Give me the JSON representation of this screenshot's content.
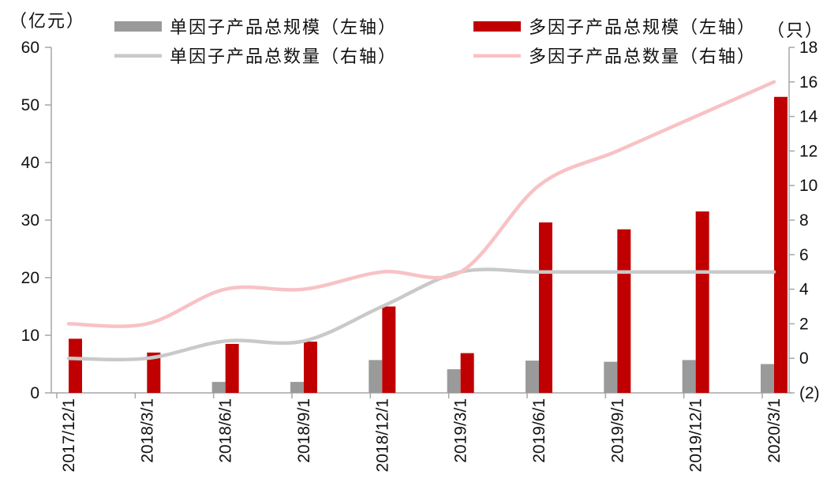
{
  "chart_data": {
    "type": "bar-line-combo",
    "categories": [
      "2017/12/1",
      "2018/3/1",
      "2018/6/1",
      "2018/9/1",
      "2018/12/1",
      "2019/3/1",
      "2019/6/1",
      "2019/9/1",
      "2019/12/1",
      "2020/3/1"
    ],
    "series": [
      {
        "key": "single_scale",
        "name": "单因子产品总规模（左轴）",
        "type": "bar",
        "axis": "left",
        "color": "#9a9a9a",
        "values": [
          0,
          0,
          1.9,
          1.9,
          5.7,
          4.1,
          5.6,
          5.4,
          5.7,
          5.0
        ]
      },
      {
        "key": "multi_scale",
        "name": "多因子产品总规模（左轴）",
        "type": "bar",
        "axis": "left",
        "color": "#c00000",
        "values": [
          9.4,
          7.0,
          8.5,
          8.9,
          15.0,
          6.9,
          29.6,
          28.4,
          31.5,
          51.4
        ]
      },
      {
        "key": "single_count",
        "name": "单因子产品总数量（右轴）",
        "type": "line",
        "axis": "right",
        "color": "#c9c9c9",
        "values": [
          0,
          0,
          1,
          1,
          3,
          5,
          5,
          5,
          5,
          5
        ]
      },
      {
        "key": "multi_count",
        "name": "多因子产品总数量（右轴）",
        "type": "line",
        "axis": "right",
        "color": "#f8c2c5",
        "values": [
          2,
          2,
          4,
          4,
          5,
          5,
          10,
          12,
          14,
          16
        ]
      }
    ],
    "left_axis": {
      "label": "（亿元）",
      "min": 0,
      "max": 60,
      "step": 10
    },
    "right_axis": {
      "label": "（只）",
      "min": -2,
      "max": 18,
      "step": 2,
      "negative_format": "parentheses"
    },
    "grid": false,
    "legend_position": "top",
    "axis_color": "#a6a6a6",
    "text_color": "#111111"
  }
}
